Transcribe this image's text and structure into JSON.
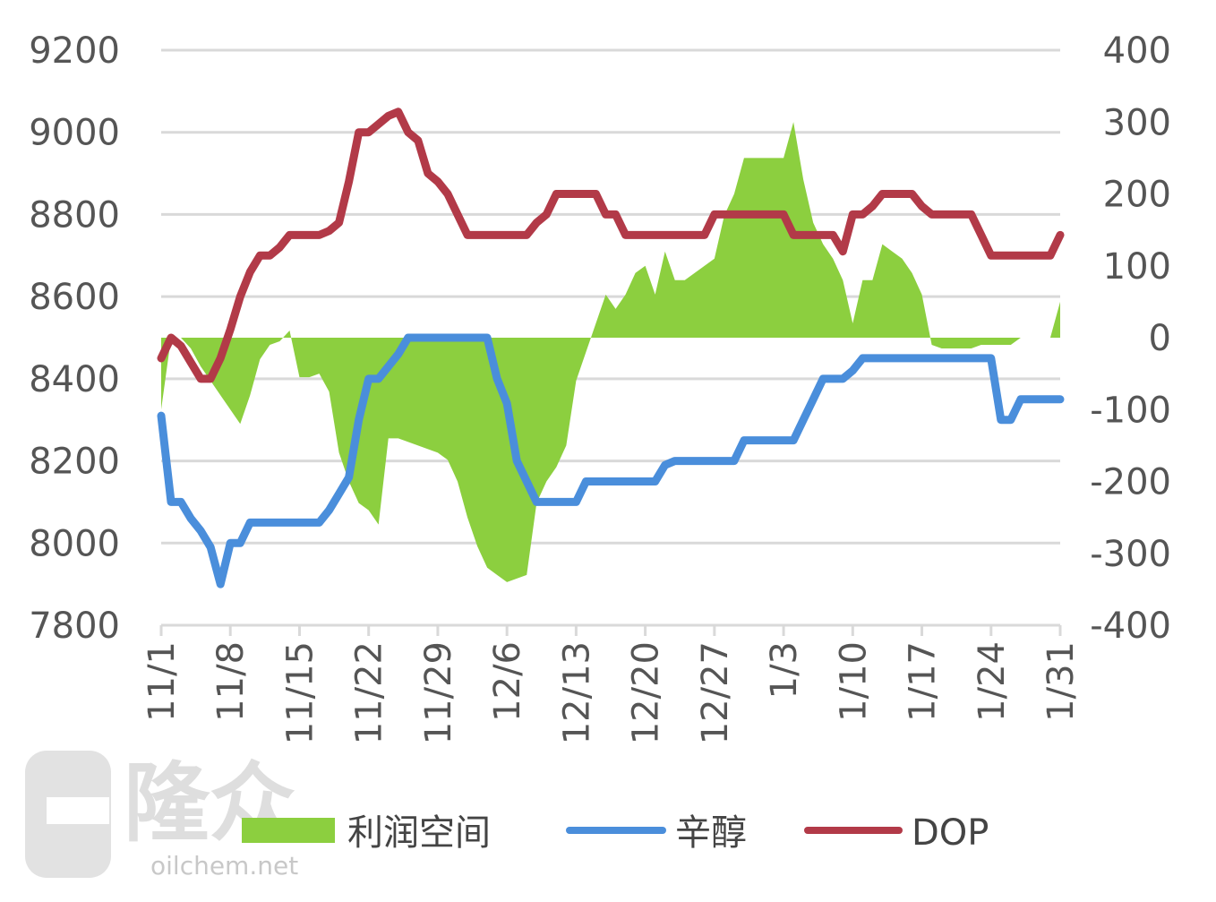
{
  "chart_data": {
    "type": "line",
    "x": [
      "11/1",
      "11/2",
      "11/3",
      "11/4",
      "11/5",
      "11/6",
      "11/7",
      "11/8",
      "11/9",
      "11/10",
      "11/11",
      "11/12",
      "11/13",
      "11/14",
      "11/15",
      "11/16",
      "11/17",
      "11/18",
      "11/19",
      "11/20",
      "11/21",
      "11/22",
      "11/23",
      "11/24",
      "11/25",
      "11/26",
      "11/27",
      "11/28",
      "11/29",
      "11/30",
      "12/1",
      "12/2",
      "12/3",
      "12/4",
      "12/5",
      "12/6",
      "12/7",
      "12/8",
      "12/9",
      "12/10",
      "12/11",
      "12/12",
      "12/13",
      "12/14",
      "12/15",
      "12/16",
      "12/17",
      "12/18",
      "12/19",
      "12/20",
      "12/21",
      "12/22",
      "12/23",
      "12/24",
      "12/25",
      "12/26",
      "12/27",
      "12/28",
      "12/29",
      "12/30",
      "12/31",
      "1/1",
      "1/2",
      "1/3",
      "1/4",
      "1/5",
      "1/6",
      "1/7",
      "1/8",
      "1/9",
      "1/10",
      "1/11",
      "1/12",
      "1/13",
      "1/14",
      "1/15",
      "1/16",
      "1/17",
      "1/18",
      "1/19",
      "1/20",
      "1/21",
      "1/22",
      "1/23",
      "1/24",
      "1/25",
      "1/26",
      "1/27",
      "1/28",
      "1/29",
      "1/30",
      "1/31"
    ],
    "xticks": [
      "11/1",
      "11/8",
      "11/15",
      "11/22",
      "11/29",
      "12/6",
      "12/13",
      "12/20",
      "12/27",
      "1/3",
      "1/10",
      "1/17",
      "1/24",
      "1/31"
    ],
    "left_axis": {
      "ticks": [
        "9200",
        "9000",
        "8800",
        "8600",
        "8400",
        "8200",
        "8000",
        "7800"
      ],
      "ylim": [
        7800,
        9200
      ]
    },
    "right_axis": {
      "ticks": [
        "400",
        "300",
        "200",
        "100",
        "0",
        "-100",
        "-200",
        "-300",
        "-400"
      ],
      "ylim": [
        -400,
        400
      ]
    },
    "grid": true,
    "legend_position": "bottom",
    "series": [
      {
        "name": "利润空间",
        "type": "area",
        "axis": "right",
        "color": "#8ccf3f",
        "values": [
          -100,
          0,
          0,
          -15,
          -40,
          -60,
          -80,
          -100,
          -120,
          -80,
          -30,
          -10,
          -5,
          10,
          -55,
          -55,
          -50,
          -75,
          -160,
          -200,
          -230,
          -240,
          -260,
          -140,
          -140,
          -145,
          -150,
          -155,
          -160,
          -170,
          -200,
          -250,
          -290,
          -320,
          -330,
          -340,
          -335,
          -330,
          -230,
          -200,
          -180,
          -150,
          -60,
          -20,
          20,
          60,
          40,
          60,
          90,
          100,
          60,
          120,
          80,
          80,
          90,
          100,
          110,
          170,
          200,
          250,
          250,
          250,
          250,
          250,
          300,
          220,
          160,
          130,
          110,
          80,
          20,
          80,
          80,
          130,
          120,
          110,
          90,
          60,
          -10,
          -15,
          -15,
          -15,
          -15,
          -10,
          -10,
          -10,
          -10,
          0,
          0,
          0,
          0,
          50
        ]
      },
      {
        "name": "辛醇",
        "type": "line",
        "axis": "left",
        "color": "#4a8edb",
        "values": [
          8310,
          8100,
          8100,
          8060,
          8030,
          7990,
          7900,
          8000,
          8000,
          8050,
          8050,
          8050,
          8050,
          8050,
          8050,
          8050,
          8050,
          8080,
          8120,
          8160,
          8300,
          8400,
          8400,
          8430,
          8460,
          8500,
          8500,
          8500,
          8500,
          8500,
          8500,
          8500,
          8500,
          8500,
          8400,
          8340,
          8200,
          8150,
          8100,
          8100,
          8100,
          8100,
          8100,
          8150,
          8150,
          8150,
          8150,
          8150,
          8150,
          8150,
          8150,
          8190,
          8200,
          8200,
          8200,
          8200,
          8200,
          8200,
          8200,
          8250,
          8250,
          8250,
          8250,
          8250,
          8250,
          8300,
          8350,
          8400,
          8400,
          8400,
          8420,
          8450,
          8450,
          8450,
          8450,
          8450,
          8450,
          8450,
          8450,
          8450,
          8450,
          8450,
          8450,
          8450,
          8450,
          8300,
          8300,
          8350,
          8350,
          8350,
          8350,
          8350
        ]
      },
      {
        "name": "DOP",
        "type": "line",
        "axis": "left",
        "color": "#b23a48",
        "values": [
          8450,
          8500,
          8480,
          8440,
          8400,
          8400,
          8450,
          8520,
          8600,
          8660,
          8700,
          8700,
          8720,
          8750,
          8750,
          8750,
          8750,
          8760,
          8780,
          8880,
          9000,
          9000,
          9020,
          9040,
          9050,
          9000,
          8980,
          8900,
          8880,
          8850,
          8800,
          8750,
          8750,
          8750,
          8750,
          8750,
          8750,
          8750,
          8780,
          8800,
          8850,
          8850,
          8850,
          8850,
          8850,
          8800,
          8800,
          8750,
          8750,
          8750,
          8750,
          8750,
          8750,
          8750,
          8750,
          8750,
          8800,
          8800,
          8800,
          8800,
          8800,
          8800,
          8800,
          8800,
          8750,
          8750,
          8750,
          8750,
          8750,
          8710,
          8800,
          8800,
          8820,
          8850,
          8850,
          8850,
          8850,
          8820,
          8800,
          8800,
          8800,
          8800,
          8800,
          8750,
          8700,
          8700,
          8700,
          8700,
          8700,
          8700,
          8700,
          8750
        ]
      }
    ]
  },
  "watermark": {
    "brand": "隆众",
    "url": "oilchem.net"
  }
}
